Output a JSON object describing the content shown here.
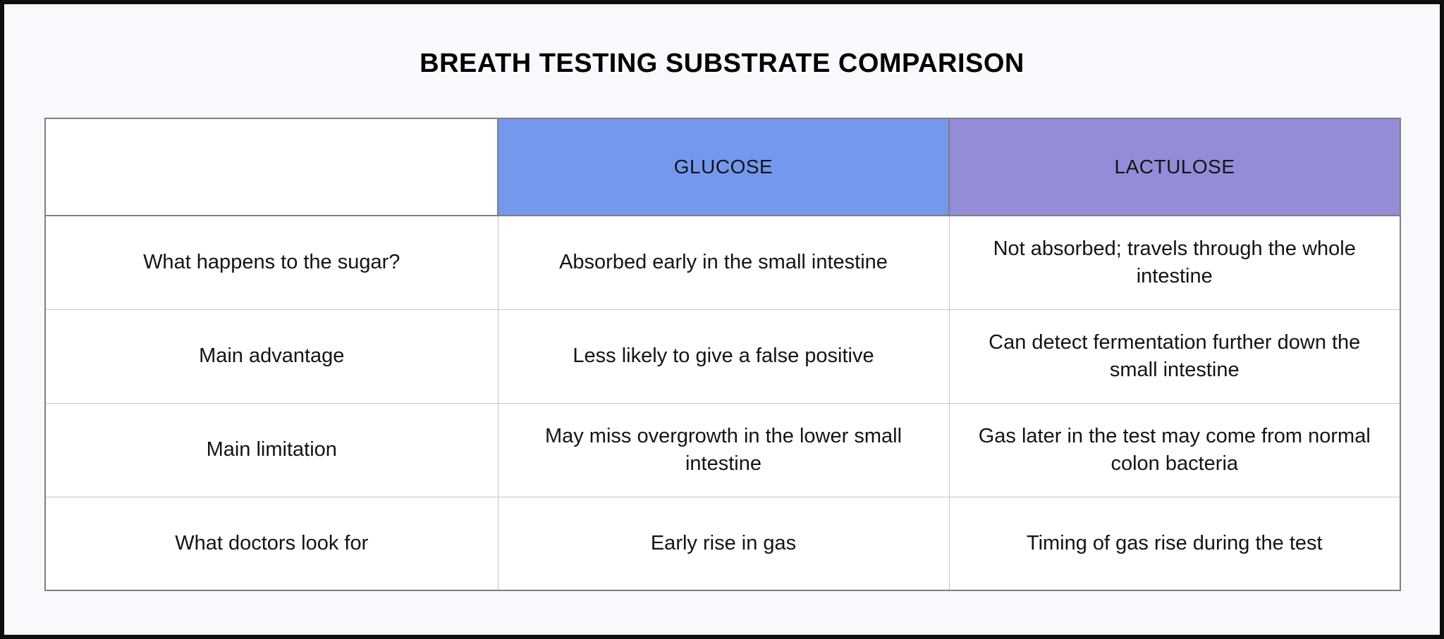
{
  "colors": {
    "page_background": "#f8f9fd",
    "frame_border": "#0e0e0e",
    "cell_background": "#ffffff",
    "glucose_header": "#7398ee",
    "lactulose_header": "#938cd9",
    "outer_border": "#7f7f7f",
    "inner_border": "#c6c6c6",
    "text_color": "#141414"
  },
  "chart_data": {
    "type": "table",
    "title": "BREATH TESTING SUBSTRATE COMPARISON",
    "columns": [
      "",
      "GLUCOSE",
      "LACTULOSE"
    ],
    "rows": [
      [
        "What happens to the sugar?",
        "Absorbed early in the small intestine",
        "Not absorbed; travels through the whole intestine"
      ],
      [
        "Main advantage",
        "Less likely to give a false positive",
        "Can detect fermentation further down the small intestine"
      ],
      [
        "Main limitation",
        "May miss overgrowth in the lower small intestine",
        "Gas later in the test may come from normal colon bacteria"
      ],
      [
        "What doctors look for",
        "Early rise in gas",
        "Timing of gas rise during the test"
      ]
    ],
    "layout": {
      "header_fill_colors": [
        "#ffffff",
        "#7398ee",
        "#938cd9"
      ],
      "grid": "on",
      "title_position": "top-center"
    }
  }
}
